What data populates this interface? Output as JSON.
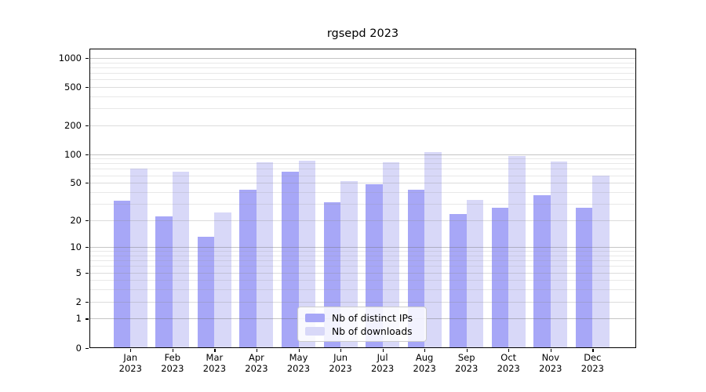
{
  "title": "rgsepd 2023",
  "chart_data": {
    "type": "bar",
    "title": "rgsepd 2023",
    "yscale": "log1p",
    "grid": "horizontal",
    "legend_position": "lower center",
    "categories": [
      "Jan",
      "Feb",
      "Mar",
      "Apr",
      "May",
      "Jun",
      "Jul",
      "Aug",
      "Sep",
      "Oct",
      "Nov",
      "Dec"
    ],
    "x_year_label": "2023",
    "series": [
      {
        "name": "Nb of distinct IPs",
        "color": "#a7a7f7",
        "values": [
          32,
          22,
          13,
          42,
          65,
          31,
          48,
          42,
          23,
          27,
          37,
          27
        ]
      },
      {
        "name": "Nb of downloads",
        "color": "#d8d8f8",
        "values": [
          70,
          66,
          24,
          82,
          86,
          52,
          82,
          105,
          33,
          95,
          84,
          60
        ]
      }
    ],
    "y_tick_labels": [
      0,
      1,
      2,
      5,
      10,
      20,
      50,
      100,
      200,
      500,
      1000
    ],
    "ylim": [
      0,
      1250
    ],
    "background_color": "#ffffff"
  }
}
